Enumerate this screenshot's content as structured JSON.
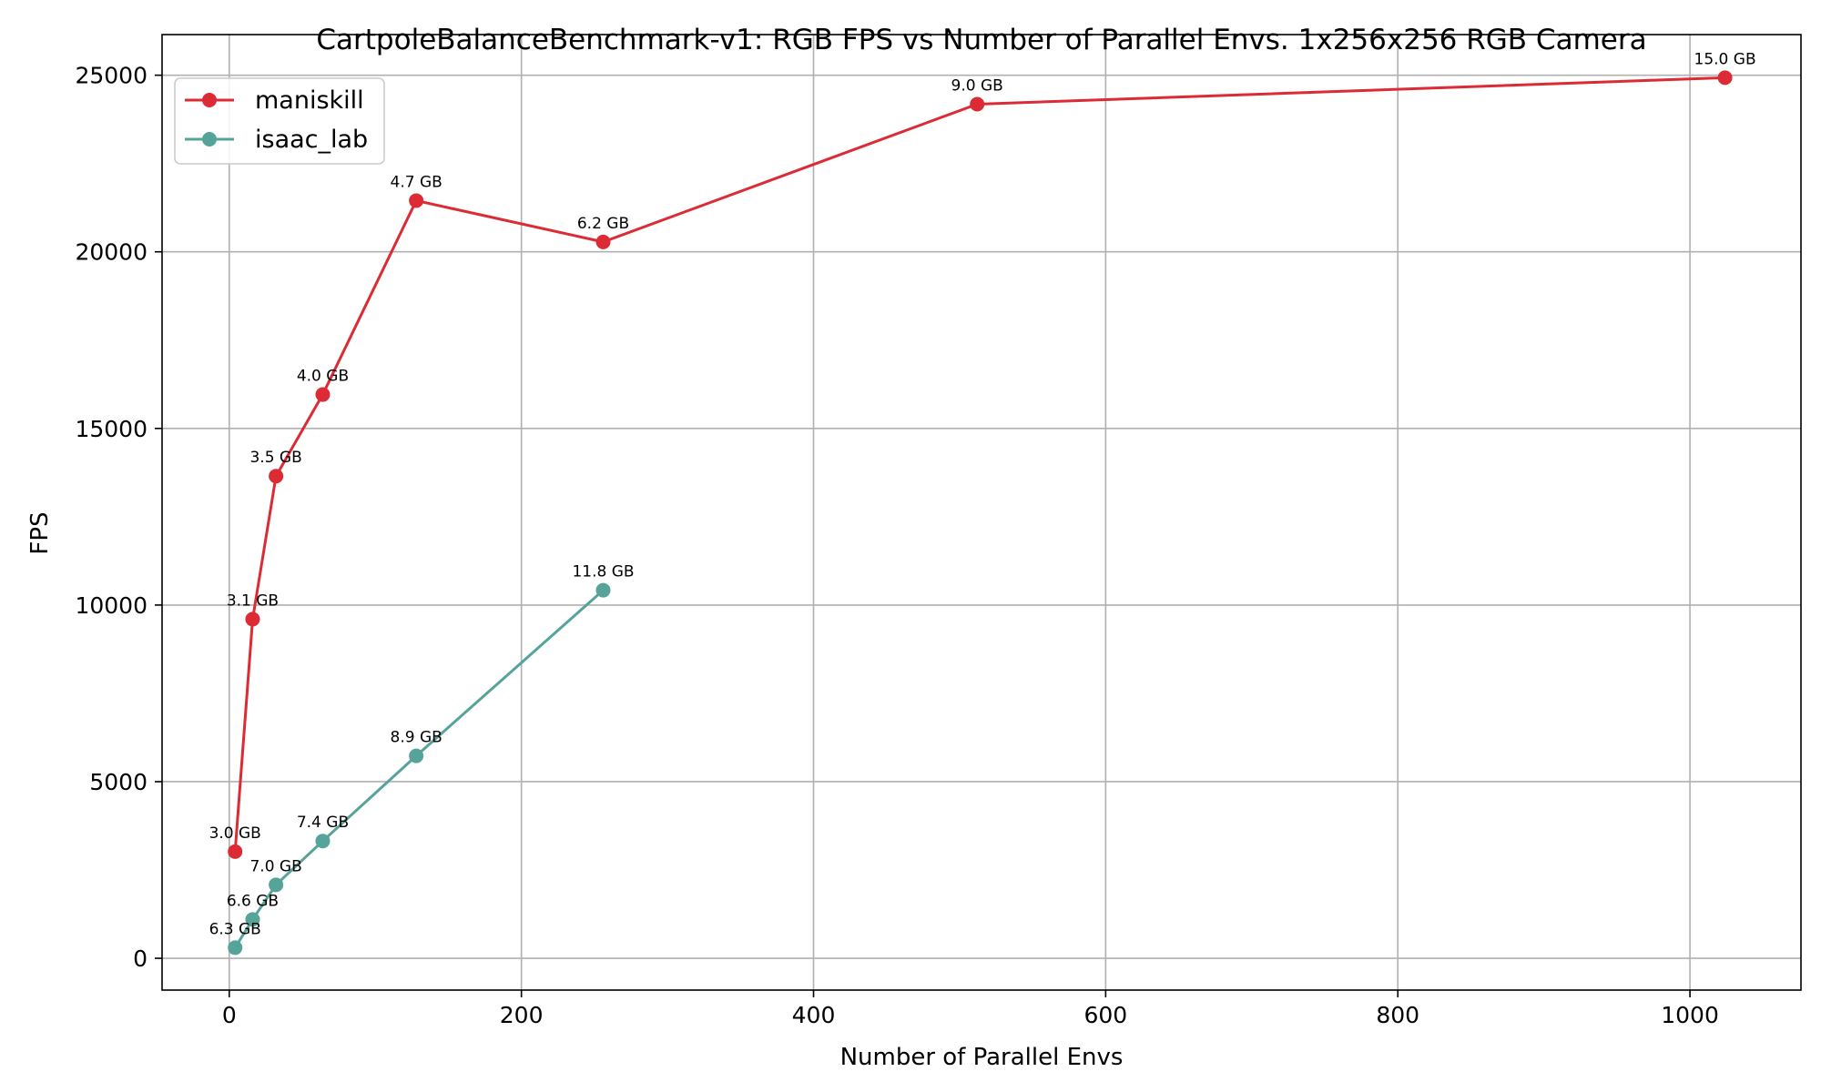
{
  "chart_data": {
    "type": "line",
    "title": "CartpoleBalanceBenchmark-v1: RGB FPS vs Number of Parallel Envs. 1x256x256 RGB Camera",
    "xlabel": "Number of Parallel Envs",
    "ylabel": "FPS",
    "xlim": [
      -46,
      1076
    ],
    "ylim": [
      -900,
      26150
    ],
    "xticks": [
      0,
      200,
      400,
      600,
      800,
      1000
    ],
    "yticks": [
      0,
      5000,
      10000,
      15000,
      20000,
      25000
    ],
    "grid": true,
    "legend_position": "top-left",
    "series": [
      {
        "name": "maniskill",
        "color": "#dc2b35",
        "x": [
          4,
          16,
          32,
          64,
          128,
          256,
          512,
          1024
        ],
        "y": [
          3020,
          9600,
          13650,
          15960,
          21450,
          20280,
          24180,
          24930
        ],
        "labels": [
          "3.0 GB",
          "3.1 GB",
          "3.5 GB",
          "4.0 GB",
          "4.7 GB",
          "6.2 GB",
          "9.0 GB",
          "15.0 GB"
        ]
      },
      {
        "name": "isaac_lab",
        "color": "#56a39a",
        "x": [
          4,
          16,
          32,
          64,
          128,
          256
        ],
        "y": [
          300,
          1100,
          2080,
          3320,
          5730,
          10420
        ],
        "labels": [
          "6.3 GB",
          "6.6 GB",
          "7.0 GB",
          "7.4 GB",
          "8.9 GB",
          "11.8 GB"
        ]
      }
    ]
  }
}
